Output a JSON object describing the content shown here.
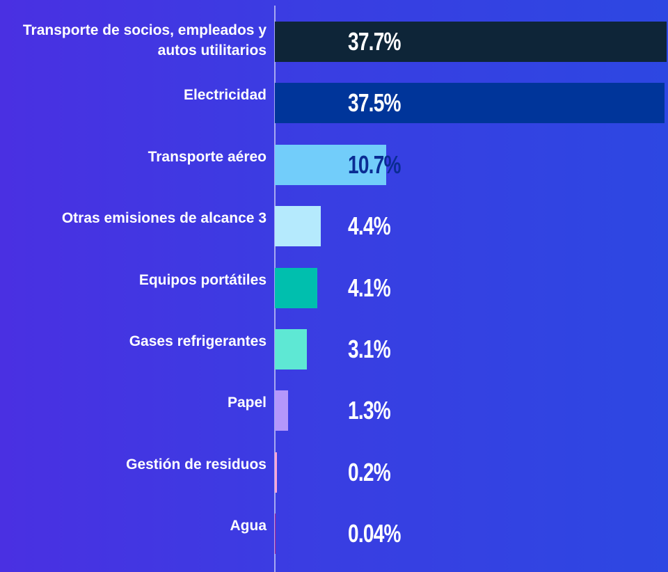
{
  "chart_data": {
    "type": "bar",
    "orientation": "horizontal",
    "categories": [
      "Transporte de socios, empleados y autos utilitarios",
      "Electricidad",
      "Transporte aéreo",
      "Otras emisiones de alcance 3",
      "Equipos portátiles",
      "Gases refrigerantes",
      "Papel",
      "Gestión de residuos",
      "Agua"
    ],
    "values": [
      37.7,
      37.5,
      10.7,
      4.4,
      4.1,
      3.1,
      1.3,
      0.2,
      0.04
    ],
    "value_labels": [
      "37.7%",
      "37.5%",
      "10.7%",
      "4.4%",
      "4.1%",
      "3.1%",
      "1.3%",
      "0.2%",
      "0.04%"
    ],
    "colors": [
      "#0e2538",
      "#00359a",
      "#72cdfa",
      "#b5eafd",
      "#00bfae",
      "#5ee8d4",
      "#b497fb",
      "#ffa6d6",
      "#b0238f"
    ],
    "value_label_colors": [
      "#ffffff",
      "#ffffff",
      "#0a2c93",
      "#ffffff",
      "#ffffff",
      "#ffffff",
      "#ffffff",
      "#ffffff",
      "#ffffff"
    ]
  }
}
